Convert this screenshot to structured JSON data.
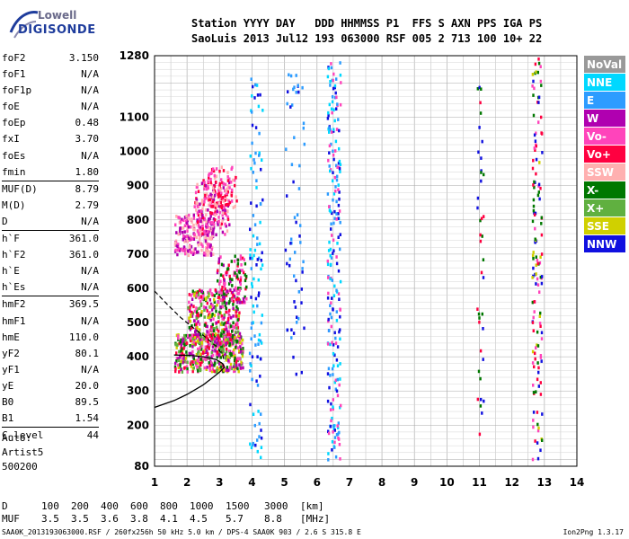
{
  "logo": {
    "line1": "Lowell",
    "line2": "DIGISONDE"
  },
  "header": {
    "row1": [
      "Station",
      "YYYY",
      "DAY",
      "DDD",
      "HHMMSS",
      "P1",
      "FFS",
      "S",
      "AXN",
      "PPS",
      "IGA",
      "PS"
    ],
    "row2": [
      "SaoLuis",
      "2013",
      "Jul12",
      "193",
      "063000",
      "RSF",
      "005",
      "2",
      "713",
      "100",
      "10+",
      "22"
    ]
  },
  "params": [
    [
      [
        "foF2",
        "3.150"
      ],
      [
        "foF1",
        "N/A"
      ],
      [
        "foF1p",
        "N/A"
      ],
      [
        "foE",
        "N/A"
      ],
      [
        "foEp",
        "0.48"
      ],
      [
        "fxI",
        "3.70"
      ],
      [
        "foEs",
        "N/A"
      ],
      [
        "fmin",
        "1.80"
      ]
    ],
    [
      [
        "MUF(D)",
        "8.79"
      ],
      [
        "M(D)",
        "2.79"
      ],
      [
        "D",
        "N/A"
      ]
    ],
    [
      [
        "h`F",
        "361.0"
      ],
      [
        "h`F2",
        "361.0"
      ],
      [
        "h`E",
        "N/A"
      ],
      [
        "h`Es",
        "N/A"
      ]
    ],
    [
      [
        "hmF2",
        "369.5"
      ],
      [
        "hmF1",
        "N/A"
      ],
      [
        "hmE",
        "110.0"
      ],
      [
        "yF2",
        "80.1"
      ],
      [
        "yF1",
        "N/A"
      ],
      [
        "yE",
        "20.0"
      ],
      [
        "B0",
        "89.5"
      ],
      [
        "B1",
        "1.54"
      ]
    ],
    [
      [
        "C-level",
        "44"
      ]
    ]
  ],
  "auto": {
    "line1": "Auto:",
    "line2": "Artist5",
    "line3": "500200"
  },
  "dmuf": {
    "d_label": "D",
    "d_values": [
      "100",
      "200",
      "400",
      "600",
      "800",
      "1000",
      "1500",
      "3000"
    ],
    "d_unit": "[km]",
    "muf_label": "MUF",
    "muf_values": [
      "3.5",
      "3.5",
      "3.6",
      "3.8",
      "4.1",
      "4.5",
      "5.7",
      "8.8"
    ],
    "muf_unit": "[MHz]"
  },
  "footer": {
    "text": "SAA0K_2013193063000.RSF / 260fx256h 50 kHz 5.0 km / DPS-4 SAA0K 903 / 2.6 S 315.8 E",
    "version": "Ion2Png 1.3.17"
  },
  "chart_data": {
    "type": "scatter",
    "xlim": [
      1,
      14
    ],
    "ylim": [
      80,
      1280
    ],
    "x_ticks": [
      "1",
      "2",
      "3",
      "4",
      "5",
      "6",
      "7",
      "8",
      "9",
      "10",
      "11",
      "12",
      "13",
      "14"
    ],
    "y_ticks": [
      "80",
      "200",
      "300",
      "400",
      "500",
      "600",
      "700",
      "800",
      "900",
      "1000",
      "1100",
      "1280"
    ],
    "legend": [
      {
        "name": "NoVal",
        "color": "#999999"
      },
      {
        "name": "NNE",
        "color": "#00d8ff"
      },
      {
        "name": "E",
        "color": "#2d9cff"
      },
      {
        "name": "W",
        "color": "#b000b0"
      },
      {
        "name": "Vo-",
        "color": "#ff44bb"
      },
      {
        "name": "Vo+",
        "color": "#ff0040"
      },
      {
        "name": "SSW",
        "color": "#ffb0b0"
      },
      {
        "name": "X-",
        "color": "#007800"
      },
      {
        "name": "X+",
        "color": "#60b040"
      },
      {
        "name": "SSE",
        "color": "#d0d000"
      },
      {
        "name": "NNW",
        "color": "#1010e0"
      }
    ],
    "trace_clusters": [
      {
        "x": [
          1.6,
          2.8
        ],
        "y": [
          700,
          820
        ],
        "colors": [
          "#ff44bb",
          "#ffb0b0",
          "#b000b0"
        ],
        "n": 220
      },
      {
        "x": [
          2.2,
          3.3
        ],
        "y": [
          760,
          920
        ],
        "colors": [
          "#ff44bb",
          "#ffb0b0",
          "#b000b0",
          "#ff0040"
        ],
        "n": 160
      },
      {
        "x": [
          2.6,
          3.5
        ],
        "y": [
          840,
          960
        ],
        "colors": [
          "#ff44bb",
          "#ffb0b0",
          "#ff0040"
        ],
        "n": 80
      },
      {
        "x": [
          1.6,
          3.7
        ],
        "y": [
          360,
          470
        ],
        "colors": [
          "#ff44bb",
          "#ff0040",
          "#007800",
          "#b000b0",
          "#d0d000",
          "#60b040"
        ],
        "n": 460
      },
      {
        "x": [
          2.0,
          3.6
        ],
        "y": [
          440,
          600
        ],
        "colors": [
          "#ff44bb",
          "#b000b0",
          "#d0d000",
          "#007800",
          "#60b040",
          "#ff0040"
        ],
        "n": 340
      },
      {
        "x": [
          2.9,
          3.8
        ],
        "y": [
          560,
          700
        ],
        "colors": [
          "#ff44bb",
          "#b000b0",
          "#ff0040",
          "#007800"
        ],
        "n": 120
      },
      {
        "x": [
          6.3,
          6.7
        ],
        "y": [
          100,
          1280
        ],
        "colors": [
          "#1010e0",
          "#2d9cff",
          "#00d8ff",
          "#ff44bb"
        ],
        "n": 220
      },
      {
        "x": [
          3.9,
          4.3
        ],
        "y": [
          100,
          1240
        ],
        "colors": [
          "#1010e0",
          "#2d9cff",
          "#00d8ff"
        ],
        "n": 110
      },
      {
        "x": [
          12.6,
          12.9
        ],
        "y": [
          100,
          1280
        ],
        "colors": [
          "#ff0040",
          "#007800",
          "#d0d000",
          "#ff44bb",
          "#1010e0"
        ],
        "n": 140
      },
      {
        "x": [
          10.9,
          11.1
        ],
        "y": [
          160,
          1240
        ],
        "colors": [
          "#1010e0",
          "#007800",
          "#ff0040"
        ],
        "n": 40
      },
      {
        "x": [
          5.0,
          5.6
        ],
        "y": [
          300,
          1250
        ],
        "colors": [
          "#1010e0",
          "#2d9cff"
        ],
        "n": 60
      }
    ],
    "profile_solid": [
      [
        1.0,
        252
      ],
      [
        1.6,
        272
      ],
      [
        2.0,
        290
      ],
      [
        2.5,
        318
      ],
      [
        2.8,
        340
      ],
      [
        3.0,
        355
      ],
      [
        3.15,
        369
      ],
      [
        3.1,
        380
      ],
      [
        2.9,
        392
      ],
      [
        2.5,
        400
      ],
      [
        2.1,
        404
      ],
      [
        1.6,
        405
      ]
    ],
    "profile_dashed": [
      [
        1.0,
        592
      ],
      [
        1.4,
        552
      ],
      [
        1.8,
        515
      ],
      [
        2.2,
        484
      ],
      [
        2.6,
        455
      ],
      [
        2.9,
        430
      ],
      [
        3.1,
        405
      ],
      [
        3.15,
        385
      ]
    ]
  }
}
